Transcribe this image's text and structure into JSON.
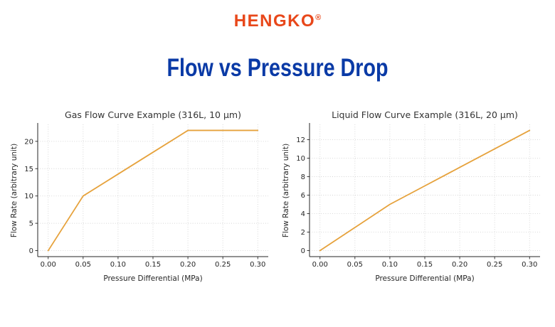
{
  "page": {
    "logo": {
      "text": "HENGKO",
      "registered_mark": "®",
      "color": "#e8471a"
    },
    "title": {
      "text": "Flow vs Pressure Drop",
      "color": "#0a3aa6"
    }
  },
  "chart_data": [
    {
      "type": "line",
      "title": "Gas Flow Curve Example (316L, 10 μm)",
      "xlabel": "Pressure Differential (MPa)",
      "ylabel": "Flow Rate (arbitrary unit)",
      "x": [
        0.0,
        0.05,
        0.1,
        0.15,
        0.2,
        0.25,
        0.3
      ],
      "y": [
        0,
        10,
        14,
        18,
        22,
        22,
        22
      ],
      "xticks": [
        0.0,
        0.05,
        0.1,
        0.15,
        0.2,
        0.25,
        0.3
      ],
      "xtick_labels": [
        "0.00",
        "0.05",
        "0.10",
        "0.15",
        "0.20",
        "0.25",
        "0.30"
      ],
      "yticks": [
        0,
        5,
        10,
        15,
        20
      ],
      "xlim": [
        -0.015,
        0.315
      ],
      "ylim": [
        -1.1,
        23.1
      ],
      "line_color": "#e6a23c",
      "grid": true,
      "legend": "none"
    },
    {
      "type": "line",
      "title": "Liquid Flow Curve Example (316L, 20 μm)",
      "xlabel": "Pressure Differential (MPa)",
      "ylabel": "Flow Rate (arbitrary unit)",
      "x": [
        0.0,
        0.05,
        0.1,
        0.15,
        0.2,
        0.25,
        0.3
      ],
      "y": [
        0,
        2.5,
        5,
        7,
        9,
        11,
        13
      ],
      "xticks": [
        0.0,
        0.05,
        0.1,
        0.15,
        0.2,
        0.25,
        0.3
      ],
      "xtick_labels": [
        "0.00",
        "0.05",
        "0.10",
        "0.15",
        "0.20",
        "0.25",
        "0.30"
      ],
      "yticks": [
        0,
        2,
        4,
        6,
        8,
        10,
        12
      ],
      "xlim": [
        -0.015,
        0.315
      ],
      "ylim": [
        -0.65,
        13.65
      ],
      "line_color": "#e6a23c",
      "grid": true,
      "legend": "none"
    }
  ]
}
